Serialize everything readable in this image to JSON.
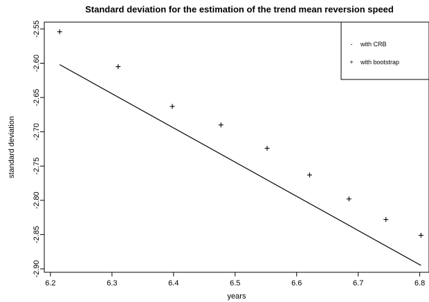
{
  "chart_data": {
    "type": "scatter",
    "title": "Standard deviation for the estimation of the trend mean reversion speed",
    "xlabel": "years",
    "ylabel": "standard deviation",
    "xlim": [
      6.19,
      6.815
    ],
    "ylim": [
      -2.905,
      -2.54
    ],
    "x_ticks": [
      6.2,
      6.3,
      6.4,
      6.5,
      6.6,
      6.7,
      6.8
    ],
    "x_tick_labels": [
      "6.2",
      "6.3",
      "6.4",
      "6.5",
      "6.6",
      "6.7",
      "6.8"
    ],
    "y_ticks": [
      -2.55,
      -2.6,
      -2.65,
      -2.7,
      -2.75,
      -2.8,
      -2.85,
      -2.9
    ],
    "y_tick_labels": [
      "-2.55",
      "-2.60",
      "-2.65",
      "-2.70",
      "-2.75",
      "-2.80",
      "-2.85",
      "-2.90"
    ],
    "grid": false,
    "legend_position": "top-right",
    "series": [
      {
        "name": "with CRB",
        "marker": "-",
        "style": "line",
        "x": [
          6.215,
          6.802
        ],
        "y": [
          -2.602,
          -2.895
        ]
      },
      {
        "name": "with bootstrap",
        "marker": "+",
        "style": "points",
        "x": [
          6.215,
          6.31,
          6.398,
          6.477,
          6.552,
          6.621,
          6.685,
          6.745,
          6.802
        ],
        "y": [
          -2.554,
          -2.605,
          -2.663,
          -2.69,
          -2.724,
          -2.763,
          -2.798,
          -2.828,
          -2.851
        ]
      }
    ]
  }
}
